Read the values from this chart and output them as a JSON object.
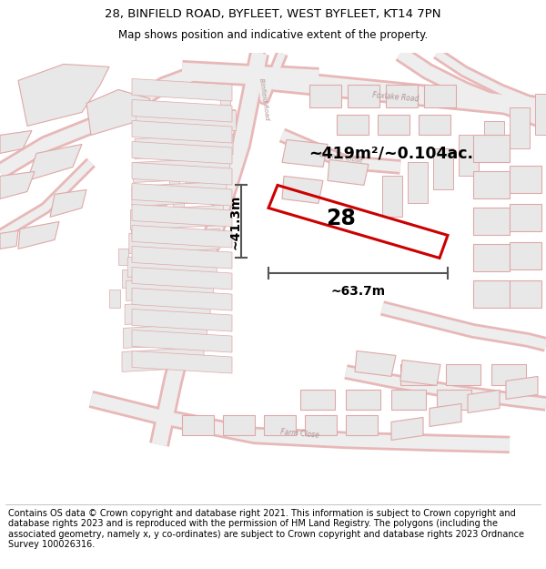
{
  "title_line1": "28, BINFIELD ROAD, BYFLEET, WEST BYFLEET, KT14 7PN",
  "title_line2": "Map shows position and indicative extent of the property.",
  "footer_text": "Contains OS data © Crown copyright and database right 2021. This information is subject to Crown copyright and database rights 2023 and is reproduced with the permission of HM Land Registry. The polygons (including the associated geometry, namely x, y co-ordinates) are subject to Crown copyright and database rights 2023 Ordnance Survey 100026316.",
  "area_label": "~419m²/~0.104ac.",
  "width_label": "~63.7m",
  "height_label": "~41.3m",
  "house_number": "28",
  "highlight_color": "#cc0000",
  "dim_color": "#555555",
  "road_outline": "#e8b8b8",
  "road_fill": "#f5f0f0",
  "building_fill": "#e8e8e8",
  "building_outline": "#e0a8a8",
  "map_bg": "#f8f4f4",
  "title_fontsize": 9.5,
  "subtitle_fontsize": 8.5,
  "footer_fontsize": 7.0
}
